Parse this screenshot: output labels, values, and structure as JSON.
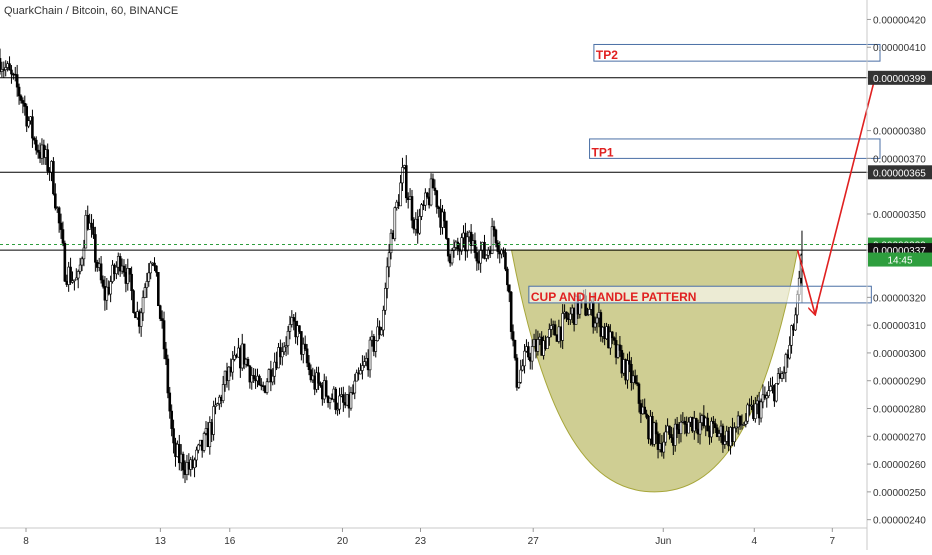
{
  "header": {
    "title": "QuarkChain / Bitcoin, 60, BINANCE"
  },
  "colors": {
    "candle": "#000000",
    "price_line": "#000000",
    "current_price": "#2e9e3e",
    "arrow": "#e02020",
    "cup_fill": "#a7a63a",
    "box_border": "#4a6fa5",
    "annotation_text": "#e02020",
    "axis_text": "#333333"
  },
  "chart_data": {
    "type": "candlestick",
    "title": "QuarkChain / Bitcoin, 60, BINANCE",
    "symbol": "QuarkChain / Bitcoin",
    "interval": "60",
    "exchange": "BINANCE",
    "ylim": [
      2.37e-06,
      4.27e-06
    ],
    "y_ticks": [
      "0.00000420",
      "0.00000410",
      "0.00000399",
      "0.00000380",
      "0.00000370",
      "0.00000365",
      "0.00000350",
      "0.00000339",
      "0.00000337",
      "0.00000320",
      "0.00000310",
      "0.00000300",
      "0.00000290",
      "0.00000280",
      "0.00000270",
      "0.00000260",
      "0.00000250",
      "0.00000240"
    ],
    "x_ticks": [
      "8",
      "13",
      "16",
      "20",
      "23",
      "27",
      "Jun",
      "4",
      "7"
    ],
    "countdown": "14:45",
    "price_path": [
      [
        0,
        4.06e-06
      ],
      [
        5,
        3.92e-06
      ],
      [
        8,
        3.76e-06
      ],
      [
        12,
        3.65e-06
      ],
      [
        15,
        3.3e-06
      ],
      [
        18,
        3.25e-06
      ],
      [
        20,
        3.5e-06
      ],
      [
        24,
        3.2e-06
      ],
      [
        28,
        3.35e-06
      ],
      [
        32,
        3.12e-06
      ],
      [
        35,
        3.38e-06
      ],
      [
        38,
        3e-06
      ],
      [
        40,
        2.64e-06
      ],
      [
        44,
        2.58e-06
      ],
      [
        48,
        2.7e-06
      ],
      [
        52,
        2.9e-06
      ],
      [
        56,
        3e-06
      ],
      [
        60,
        2.85e-06
      ],
      [
        64,
        3e-06
      ],
      [
        68,
        3.1e-06
      ],
      [
        72,
        2.9e-06
      ],
      [
        76,
        2.85e-06
      ],
      [
        80,
        2.8e-06
      ],
      [
        84,
        2.95e-06
      ],
      [
        88,
        3.1e-06
      ],
      [
        90,
        3.4e-06
      ],
      [
        93,
        3.65e-06
      ],
      [
        96,
        3.45e-06
      ],
      [
        100,
        3.6e-06
      ],
      [
        104,
        3.35e-06
      ],
      [
        108,
        3.4e-06
      ],
      [
        112,
        3.35e-06
      ],
      [
        114,
        3.45e-06
      ],
      [
        117,
        3.3e-06
      ],
      [
        119,
        2.9e-06
      ],
      [
        122,
        3e-06
      ],
      [
        126,
        3.05e-06
      ],
      [
        130,
        3.1e-06
      ],
      [
        134,
        3.18e-06
      ],
      [
        138,
        3.12e-06
      ],
      [
        142,
        3e-06
      ],
      [
        146,
        2.9e-06
      ],
      [
        149,
        2.75e-06
      ],
      [
        152,
        2.68e-06
      ],
      [
        156,
        2.72e-06
      ],
      [
        160,
        2.76e-06
      ],
      [
        164,
        2.72e-06
      ],
      [
        168,
        2.7e-06
      ],
      [
        172,
        2.76e-06
      ],
      [
        176,
        2.82e-06
      ],
      [
        180,
        2.9e-06
      ],
      [
        182,
        3e-06
      ],
      [
        184,
        3.18e-06
      ],
      [
        185,
        3.35e-06
      ]
    ],
    "series": [
      {
        "name": "",
        "type": "horizontal_line",
        "value": 3.99e-06
      },
      {
        "name": "",
        "type": "horizontal_line",
        "value": 3.65e-06
      },
      {
        "name": "",
        "type": "horizontal_line",
        "value": 3.37e-06
      },
      {
        "name": "",
        "type": "current_price_line",
        "value": 3.39e-06
      }
    ],
    "price_labels": {
      "resistance_top": "0.00000399",
      "resistance_mid": "0.00000365",
      "current": "0.00000339",
      "support": "0.00000337"
    },
    "annotations": {
      "tp1": {
        "text": "TP1",
        "low": 3.7e-06,
        "high": 3.77e-06,
        "x_start": 136,
        "x_end": 203
      },
      "tp2": {
        "text": "TP2",
        "low": 4.05e-06,
        "high": 4.11e-06,
        "x_start": 137,
        "x_end": 203
      },
      "pattern": {
        "text": "CUP AND HANDLE PATTERN",
        "low": 3.18e-06,
        "high": 3.24e-06,
        "x_start": 122,
        "x_end": 201
      },
      "cup": {
        "x_start": 118,
        "x_end": 184,
        "top": 3.37e-06,
        "bottom": 2.5e-06
      },
      "handle_arrow": {
        "from": [
          184,
          3.37e-06
        ],
        "to": [
          188,
          3.14e-06
        ]
      },
      "target_arrow": {
        "from": [
          188,
          3.14e-06
        ],
        "to": [
          202,
          4e-06
        ]
      }
    },
    "x_range": [
      0,
      200
    ],
    "x_tick_positions": [
      6,
      37,
      53,
      79,
      97,
      123,
      153,
      174,
      192
    ],
    "grid": false,
    "legend": "none"
  }
}
